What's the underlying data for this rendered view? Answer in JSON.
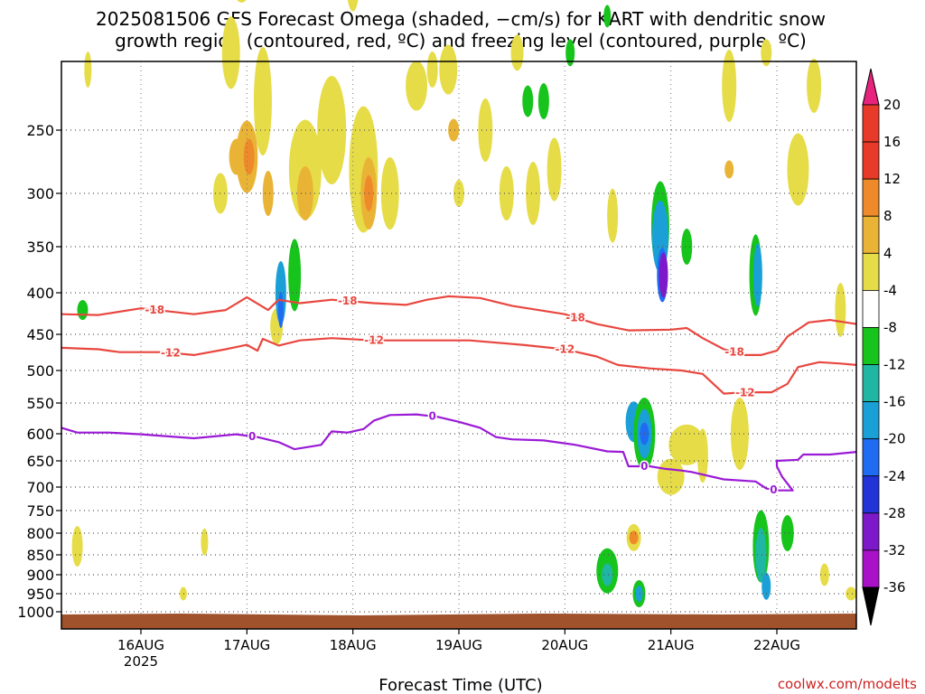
{
  "chart_data": {
    "type": "heatmap",
    "title_lines": [
      "2025081506 GFS Forecast Omega (shaded, −cm/s) for KART with dendritic snow",
      "growth region (contoured, red, ºC) and freezing level (contoured, purple, ºC)"
    ],
    "xlabel": "Forecast Time (UTC)",
    "credit": "coolwx.com/modelts",
    "y_axis": {
      "scale": "pressure (decreasing upward)",
      "range": [
        1000,
        200
      ],
      "ticks": [
        250,
        300,
        350,
        400,
        450,
        500,
        550,
        600,
        650,
        700,
        750,
        800,
        850,
        900,
        950,
        1000
      ]
    },
    "x_axis": {
      "range_days_from_16AUG00Z": [
        -0.75,
        6.75
      ],
      "ticks": [
        {
          "label": "16AUG",
          "sub": "2025",
          "day": 0
        },
        {
          "label": "17AUG",
          "sub": "",
          "day": 1
        },
        {
          "label": "18AUG",
          "sub": "",
          "day": 2
        },
        {
          "label": "19AUG",
          "sub": "",
          "day": 3
        },
        {
          "label": "20AUG",
          "sub": "",
          "day": 4
        },
        {
          "label": "21AUG",
          "sub": "",
          "day": 5
        },
        {
          "label": "22AUG",
          "sub": "",
          "day": 6
        }
      ]
    },
    "grid": "dotted",
    "colorbar": {
      "levels": [
        {
          "label": "20",
          "color": "#f0f0f0"
        },
        {
          "label": "16",
          "color": "#e83a28"
        },
        {
          "label": "12",
          "color": "#ee8a2a"
        },
        {
          "label": "8",
          "color": "#e9b436"
        },
        {
          "label": "4",
          "color": "#e6dc48"
        },
        {
          "label": "-4",
          "color": "#ffffff"
        },
        {
          "label": "-8",
          "color": "#17c41c"
        },
        {
          "label": "-12",
          "color": "#1fb6a3"
        },
        {
          "label": "-16",
          "color": "#1aa0d6"
        },
        {
          "label": "-20",
          "color": "#1f6cf2"
        },
        {
          "label": "-24",
          "color": "#2233d8"
        },
        {
          "label": "-28",
          "color": "#7d19c9"
        },
        {
          "label": "-32",
          "color": "#a911c9"
        },
        {
          "label": "-36",
          "color": "#a5a5a5"
        }
      ],
      "top_arrow_color": "#e8237d",
      "bottom_arrow_color": "#000000"
    },
    "contours": [
      {
        "name": "-18",
        "color": "#e8473f",
        "points": [
          [
            -0.75,
            425
          ],
          [
            -0.4,
            426
          ],
          [
            0,
            418
          ],
          [
            0.5,
            425
          ],
          [
            0.8,
            420
          ],
          [
            1.0,
            405
          ],
          [
            1.2,
            420
          ],
          [
            1.3,
            408
          ],
          [
            1.5,
            412
          ],
          [
            1.8,
            408
          ],
          [
            2.2,
            412
          ],
          [
            2.5,
            414
          ],
          [
            2.7,
            408
          ],
          [
            2.9,
            404
          ],
          [
            3.2,
            406
          ],
          [
            3.5,
            415
          ],
          [
            4.0,
            425
          ],
          [
            4.3,
            437
          ],
          [
            4.6,
            445
          ],
          [
            5.0,
            444
          ],
          [
            5.15,
            442
          ],
          [
            5.3,
            455
          ],
          [
            5.5,
            470
          ],
          [
            5.7,
            478
          ],
          [
            5.85,
            478
          ],
          [
            6.0,
            472
          ],
          [
            6.1,
            453
          ],
          [
            6.3,
            435
          ],
          [
            6.5,
            432
          ],
          [
            6.75,
            437
          ]
        ],
        "labels": [
          [
            0.13,
            "-18"
          ],
          [
            1.95,
            "-18"
          ],
          [
            4.1,
            "-18"
          ],
          [
            5.6,
            "-18"
          ]
        ]
      },
      {
        "name": "-12",
        "color": "#e8473f",
        "points": [
          [
            -0.75,
            468
          ],
          [
            -0.4,
            470
          ],
          [
            -0.2,
            474
          ],
          [
            0.2,
            474
          ],
          [
            0.5,
            478
          ],
          [
            0.8,
            470
          ],
          [
            1.0,
            464
          ],
          [
            1.1,
            472
          ],
          [
            1.15,
            456
          ],
          [
            1.3,
            465
          ],
          [
            1.5,
            458
          ],
          [
            1.8,
            455
          ],
          [
            2.2,
            458
          ],
          [
            2.4,
            458
          ],
          [
            2.7,
            458
          ],
          [
            3.1,
            458
          ],
          [
            3.6,
            464
          ],
          [
            4.0,
            470
          ],
          [
            4.3,
            480
          ],
          [
            4.5,
            492
          ],
          [
            4.8,
            497
          ],
          [
            5.1,
            500
          ],
          [
            5.3,
            505
          ],
          [
            5.5,
            535
          ],
          [
            5.6,
            534
          ],
          [
            5.8,
            533
          ],
          [
            5.95,
            533
          ],
          [
            6.1,
            520
          ],
          [
            6.2,
            495
          ],
          [
            6.4,
            488
          ],
          [
            6.6,
            490
          ],
          [
            6.75,
            492
          ]
        ],
        "labels": [
          [
            0.28,
            "-12"
          ],
          [
            2.2,
            "-12"
          ],
          [
            4.0,
            "-12"
          ],
          [
            5.7,
            "-12"
          ]
        ]
      },
      {
        "name": "0",
        "color": "#9a1ad6",
        "points": [
          [
            -0.75,
            590
          ],
          [
            -0.6,
            598
          ],
          [
            -0.3,
            598
          ],
          [
            0,
            601
          ],
          [
            0.5,
            608
          ],
          [
            0.9,
            601
          ],
          [
            1.1,
            606
          ],
          [
            1.3,
            615
          ],
          [
            1.45,
            628
          ],
          [
            1.7,
            620
          ],
          [
            1.8,
            596
          ],
          [
            1.95,
            598
          ],
          [
            2.1,
            592
          ],
          [
            2.2,
            578
          ],
          [
            2.35,
            569
          ],
          [
            2.6,
            568
          ],
          [
            2.8,
            572
          ],
          [
            3.0,
            580
          ],
          [
            3.2,
            590
          ],
          [
            3.35,
            606
          ],
          [
            3.5,
            610
          ],
          [
            3.8,
            612
          ],
          [
            4.1,
            620
          ],
          [
            4.4,
            632
          ],
          [
            4.55,
            633
          ],
          [
            4.6,
            660
          ],
          [
            4.8,
            660
          ],
          [
            4.95,
            665
          ],
          [
            5.1,
            668
          ],
          [
            5.2,
            671
          ],
          [
            5.5,
            685
          ],
          [
            5.8,
            689
          ],
          [
            5.9,
            703
          ],
          [
            6.0,
            707
          ],
          [
            6.15,
            707
          ],
          [
            6.05,
            680
          ],
          [
            6.0,
            660
          ],
          [
            6.0,
            650
          ],
          [
            6.2,
            648
          ],
          [
            6.25,
            638
          ],
          [
            6.5,
            638
          ],
          [
            6.75,
            633
          ]
        ],
        "labels": [
          [
            1.05,
            "0"
          ],
          [
            2.75,
            "0"
          ],
          [
            4.75,
            "0"
          ],
          [
            5.97,
            "0"
          ]
        ]
      }
    ]
  }
}
